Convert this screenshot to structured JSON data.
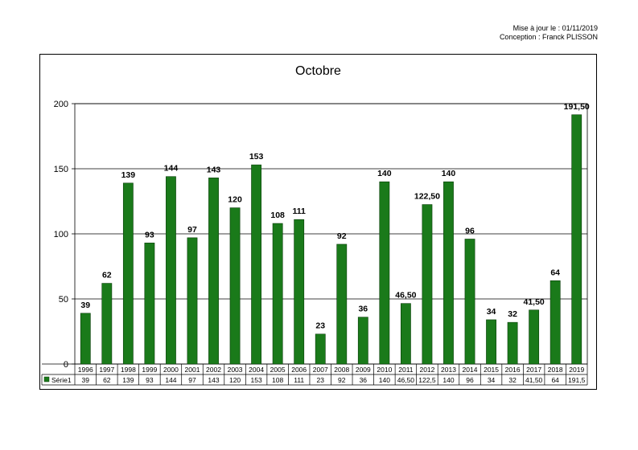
{
  "header": {
    "updated": "Mise à jour le : 01/11/2019",
    "author": "Conception : Franck PLISSON"
  },
  "chart_data": {
    "type": "bar",
    "title": "Octobre",
    "xlabel": "",
    "ylabel": "",
    "ylim": [
      0,
      200
    ],
    "yticks": [
      "0",
      "50",
      "100",
      "150",
      "200"
    ],
    "grid": true,
    "legend": "data-table",
    "bar_color": "#1a7a1a",
    "categories": [
      "1996",
      "1997",
      "1998",
      "1999",
      "2000",
      "2001",
      "2002",
      "2003",
      "2004",
      "2005",
      "2006",
      "2007",
      "2008",
      "2009",
      "2010",
      "2011",
      "2012",
      "2013",
      "2014",
      "2015",
      "2016",
      "2017",
      "2018",
      "2019"
    ],
    "series": [
      {
        "name": "Série1",
        "values": [
          39,
          62,
          139,
          93,
          144,
          97,
          143,
          120,
          153,
          108,
          111,
          23,
          92,
          36,
          140,
          46.5,
          122.5,
          140,
          96,
          34,
          32,
          41.5,
          64,
          191.5
        ],
        "data_labels": [
          "39",
          "62",
          "139",
          "93",
          "144",
          "97",
          "143",
          "120",
          "153",
          "108",
          "111",
          "23",
          "92",
          "36",
          "140",
          "46,50",
          "122,50",
          "140",
          "96",
          "34",
          "32",
          "41,50",
          "64",
          "191,50"
        ],
        "table_values": [
          "39",
          "62",
          "139",
          "93",
          "144",
          "97",
          "143",
          "120",
          "153",
          "108",
          "111",
          "23",
          "92",
          "36",
          "140",
          "46,50",
          "122,5",
          "140",
          "96",
          "34",
          "32",
          "41,50",
          "64",
          "191,5"
        ]
      }
    ]
  }
}
